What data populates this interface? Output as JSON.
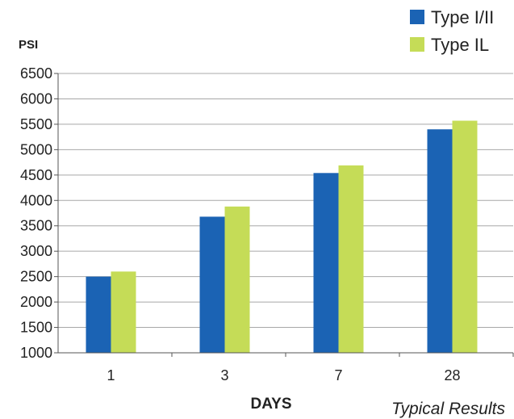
{
  "chart_data": {
    "type": "bar",
    "ylabel": "PSI",
    "xlabel": "DAYS",
    "annotation": "Typical Results",
    "categories": [
      "1",
      "3",
      "7",
      "28"
    ],
    "series": [
      {
        "name": "Type I/II",
        "color": "#1b63b4",
        "values": [
          2500,
          3680,
          4540,
          5400
        ]
      },
      {
        "name": "Type IL",
        "color": "#c5dc57",
        "values": [
          2600,
          3880,
          4690,
          5570
        ]
      }
    ],
    "ylim": [
      1000,
      6500
    ],
    "yticks": [
      1000,
      1500,
      2000,
      2500,
      3000,
      3500,
      4000,
      4500,
      5000,
      5500,
      6000,
      6500
    ],
    "grid": true,
    "legend_position": "top-right"
  }
}
